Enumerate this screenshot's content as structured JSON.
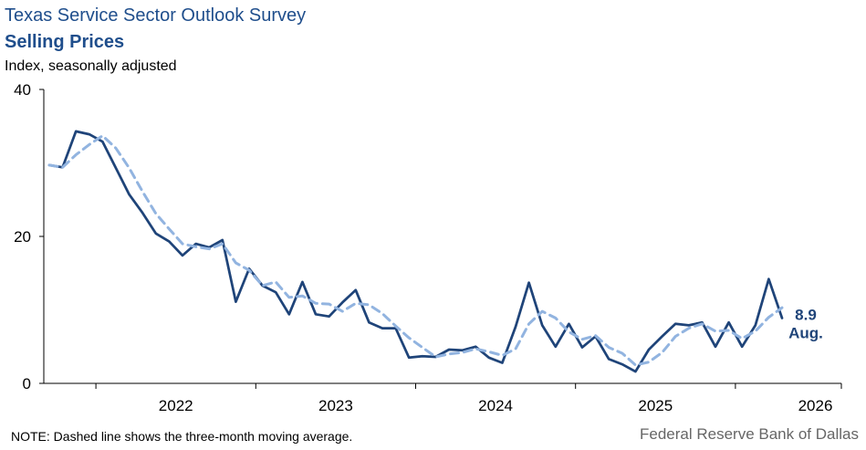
{
  "chart_data": {
    "type": "line",
    "title": "Texas Service Sector Outlook Survey",
    "subtitle": "Selling Prices",
    "ylabel": "Index, seasonally adjusted",
    "xlabel": "",
    "ylim": [
      0,
      40
    ],
    "yticks": [
      0,
      20,
      40
    ],
    "x_ticks": [
      "2022",
      "2023",
      "2024",
      "2025",
      "2026"
    ],
    "x_start_month": "2021-09",
    "grid": false,
    "colors": {
      "series": "#1f4479",
      "average": "#92b4e0",
      "title": "#1f4e8c"
    },
    "series": [
      {
        "style": "solid",
        "values": [
          29.7,
          29.4,
          34.3,
          33.9,
          32.9,
          29.3,
          25.7,
          23.2,
          20.4,
          19.3,
          17.4,
          19.0,
          18.5,
          19.5,
          11.1,
          15.6,
          13.3,
          12.4,
          9.4,
          13.8,
          9.4,
          9.1,
          11.0,
          12.7,
          8.3,
          7.5,
          7.5,
          3.5,
          3.7,
          3.6,
          4.6,
          4.5,
          5.0,
          3.5,
          2.8,
          7.7,
          13.7,
          7.9,
          5.0,
          8.1,
          4.9,
          6.4,
          3.3,
          2.6,
          1.6,
          4.6,
          6.4,
          8.1,
          7.9,
          8.3,
          5.0,
          8.3,
          5.0,
          7.9,
          14.2,
          8.9
        ]
      },
      {
        "style": "dashed",
        "values": [
          29.7,
          29.4,
          31.1,
          32.5,
          33.7,
          32.0,
          29.3,
          26.1,
          23.1,
          21.0,
          19.0,
          18.6,
          18.3,
          19.0,
          16.4,
          15.4,
          13.3,
          13.8,
          11.7,
          11.9,
          10.9,
          10.8,
          9.8,
          10.9,
          10.7,
          9.5,
          7.8,
          6.2,
          4.9,
          3.6,
          4.0,
          4.2,
          4.7,
          4.3,
          3.8,
          4.7,
          8.1,
          9.8,
          8.9,
          7.0,
          6.0,
          6.5,
          4.9,
          4.1,
          2.5,
          2.9,
          4.2,
          6.4,
          7.5,
          8.1,
          7.1,
          7.2,
          6.1,
          7.1,
          9.0,
          10.3
        ]
      }
    ],
    "annotation": {
      "value": "8.9",
      "label": "Aug."
    }
  },
  "note": "NOTE: Dashed line shows the three-month  moving average.",
  "source": "Federal Reserve Bank of Dallas"
}
